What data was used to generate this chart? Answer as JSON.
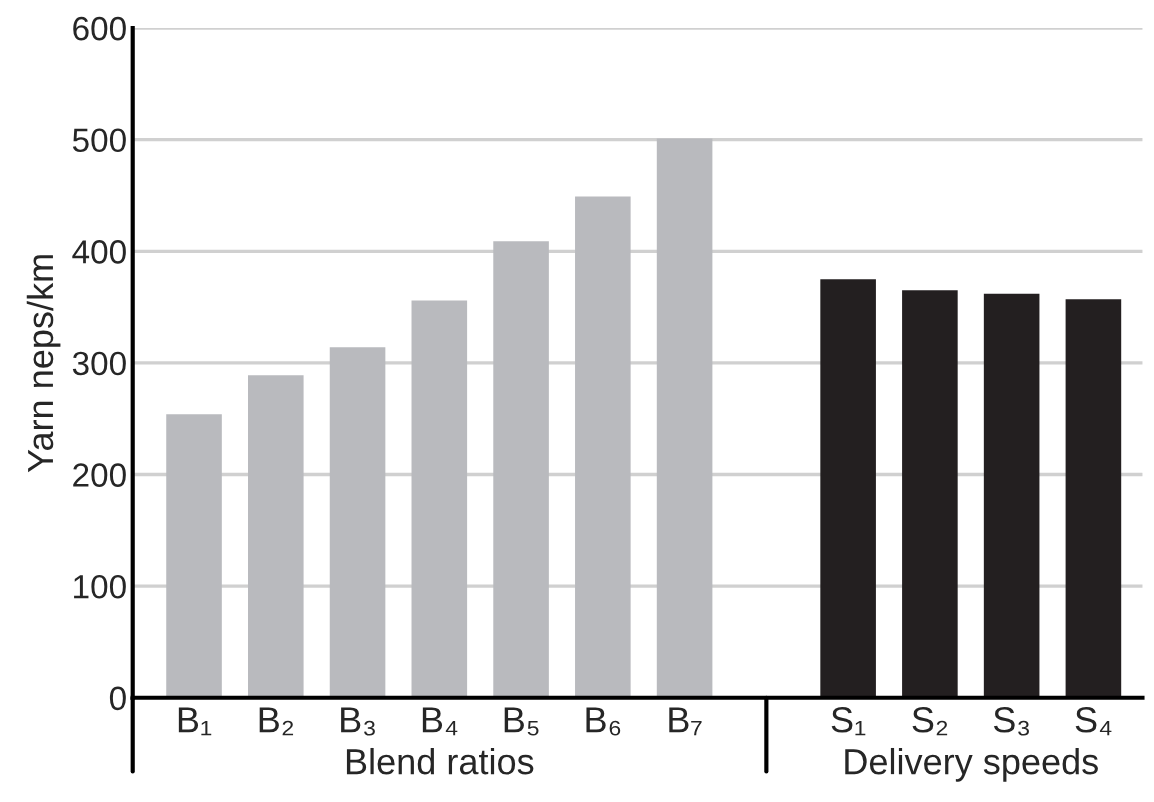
{
  "chart_data": {
    "type": "bar",
    "ylabel": "Yarn neps/km",
    "categories": [
      "B₁",
      "B₂",
      "B₃",
      "B₄",
      "B₅",
      "B₆",
      "B₇",
      null,
      "S₁",
      "S₂",
      "S₃",
      "S₄"
    ],
    "values": [
      254,
      289,
      314,
      356,
      409,
      449,
      501,
      null,
      375,
      365,
      362,
      357
    ],
    "colors": [
      "#b9babe",
      "#b9babe",
      "#b9babe",
      "#b9babe",
      "#b9babe",
      "#b9babe",
      "#b9babe",
      "#ffffff",
      "#231f20",
      "#231f20",
      "#231f20",
      "#231f20"
    ],
    "ylim": [
      0,
      600
    ],
    "yticks": [
      0,
      100,
      200,
      300,
      400,
      500,
      600
    ],
    "grid": "y",
    "annotations": [
      "Blend ratios",
      "Delivery speeds"
    ]
  }
}
